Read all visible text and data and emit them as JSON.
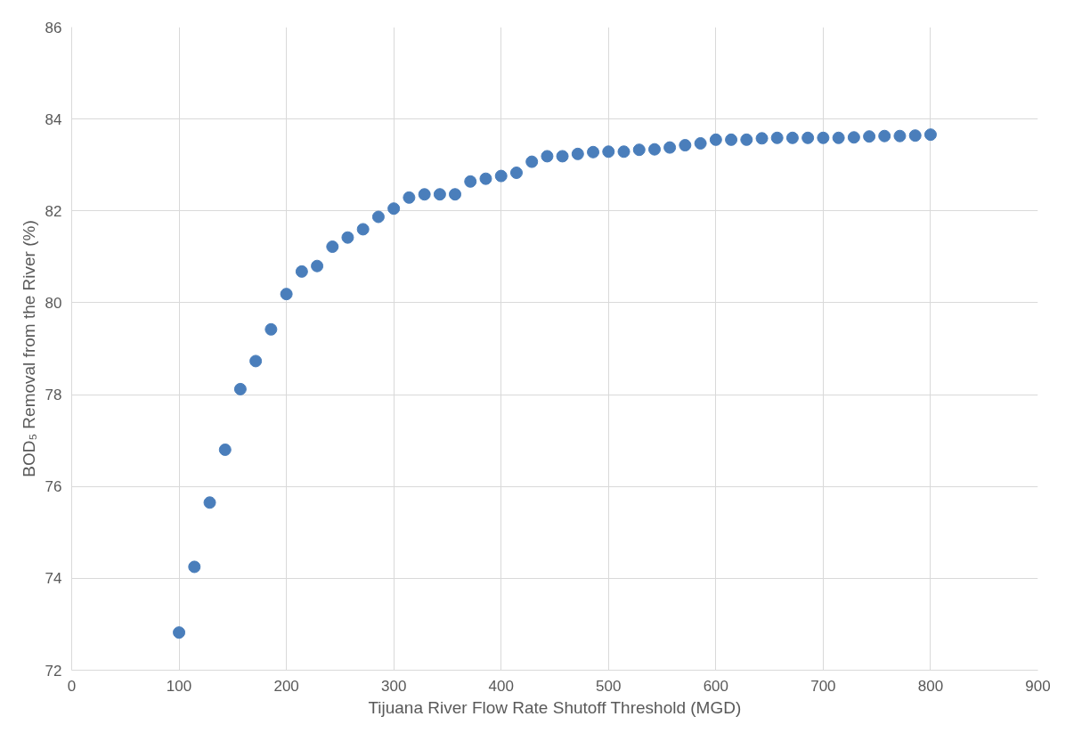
{
  "chart_data": {
    "type": "scatter",
    "xlabel": "Tijuana River Flow Rate Shutoff Threshold (MGD)",
    "ylabel": "BOD₅ Removal from the River (%)",
    "x": [
      100,
      114.3,
      128.6,
      142.9,
      157.1,
      171.4,
      185.7,
      200,
      214.3,
      228.6,
      242.9,
      257.1,
      271.4,
      285.7,
      300,
      314.3,
      328.6,
      342.9,
      357.1,
      371.4,
      385.7,
      400,
      414.3,
      428.6,
      442.9,
      457.1,
      471.4,
      485.7,
      500,
      514.3,
      528.6,
      542.9,
      557.1,
      571.4,
      585.7,
      600,
      614.3,
      628.6,
      642.9,
      657.1,
      671.4,
      685.7,
      700,
      714.3,
      728.6,
      742.9,
      757.1,
      771.4,
      785.7,
      800
    ],
    "series": [
      {
        "color": "#4a7ebb",
        "values": [
          72.82,
          74.25,
          75.65,
          76.8,
          78.12,
          78.73,
          79.42,
          80.19,
          80.68,
          80.8,
          81.22,
          81.42,
          81.6,
          81.87,
          82.05,
          82.29,
          82.36,
          82.36,
          82.36,
          82.64,
          82.7,
          82.76,
          82.83,
          83.07,
          83.19,
          83.19,
          83.24,
          83.28,
          83.29,
          83.29,
          83.33,
          83.34,
          83.38,
          83.43,
          83.47,
          83.55,
          83.55,
          83.55,
          83.58,
          83.59,
          83.59,
          83.59,
          83.59,
          83.59,
          83.6,
          83.62,
          83.63,
          83.63,
          83.64,
          83.66
        ]
      }
    ],
    "xlim": [
      0,
      900
    ],
    "xticks": [
      0,
      100,
      200,
      300,
      400,
      500,
      600,
      700,
      800,
      900
    ],
    "ylim": [
      72,
      86
    ],
    "yticks": [
      72,
      74,
      76,
      78,
      80,
      82,
      84,
      86
    ],
    "grid": true,
    "marker": "circle"
  }
}
